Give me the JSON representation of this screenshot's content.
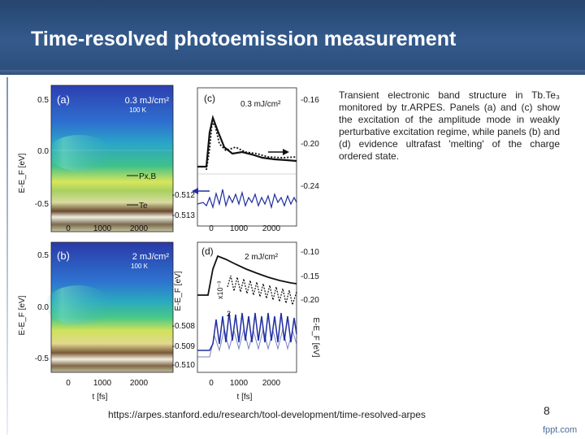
{
  "slide": {
    "title": "Time-resolved photoemission measurement",
    "caption": "Transient electronic band structure in Tb.Te₃ monitored by tr.ARPES. Panels (a) and (c) show the excitation of the amplitude mode in weakly perturbative excitation regime, while panels (b) and (d) evidence ultrafast 'melting' of the charge ordered state.",
    "source_url": "https://arpes.stanford.edu/research/tool-development/time-resolved-arpes",
    "page_number": "8",
    "footer_logo": "fppt.com"
  },
  "figure": {
    "panel_a": {
      "label": "(a)",
      "fluence": "0.3 mJ/cm²",
      "temperature": "100 K",
      "band1": "Px,B",
      "band2": "Te"
    },
    "panel_b": {
      "label": "(b)",
      "fluence": "2 mJ/cm²",
      "temperature": "100 K"
    },
    "panel_c": {
      "label": "(c)",
      "fluence": "0.3 mJ/cm²"
    },
    "panel_d": {
      "label": "(d)",
      "fluence": "2 mJ/cm²",
      "scale_label": "x10⁻³",
      "scale_value": "2"
    },
    "left_yticks_top": [
      "0.5",
      "0.0",
      "-0.5"
    ],
    "left_yticks_bottom": [
      "0.5",
      "0.0",
      "-0.5"
    ],
    "left_ylabel": "E-E_F [eV]",
    "xticks": [
      "0",
      "1000",
      "2000"
    ],
    "xlabel": "t [fs]",
    "c_right_ticks": [
      "-0.16",
      "-0.20",
      "-0.24"
    ],
    "c_left_ticks": [
      "-0.512",
      "-0.513"
    ],
    "d_right_ticks": [
      "-0.10",
      "-0.15",
      "-0.20"
    ],
    "d_left_ticks": [
      "-0.508",
      "-0.509",
      "-0.510"
    ],
    "mid_ylabel": "E-E_F [eV]",
    "right_ylabel": "E-E_F [eV]"
  }
}
